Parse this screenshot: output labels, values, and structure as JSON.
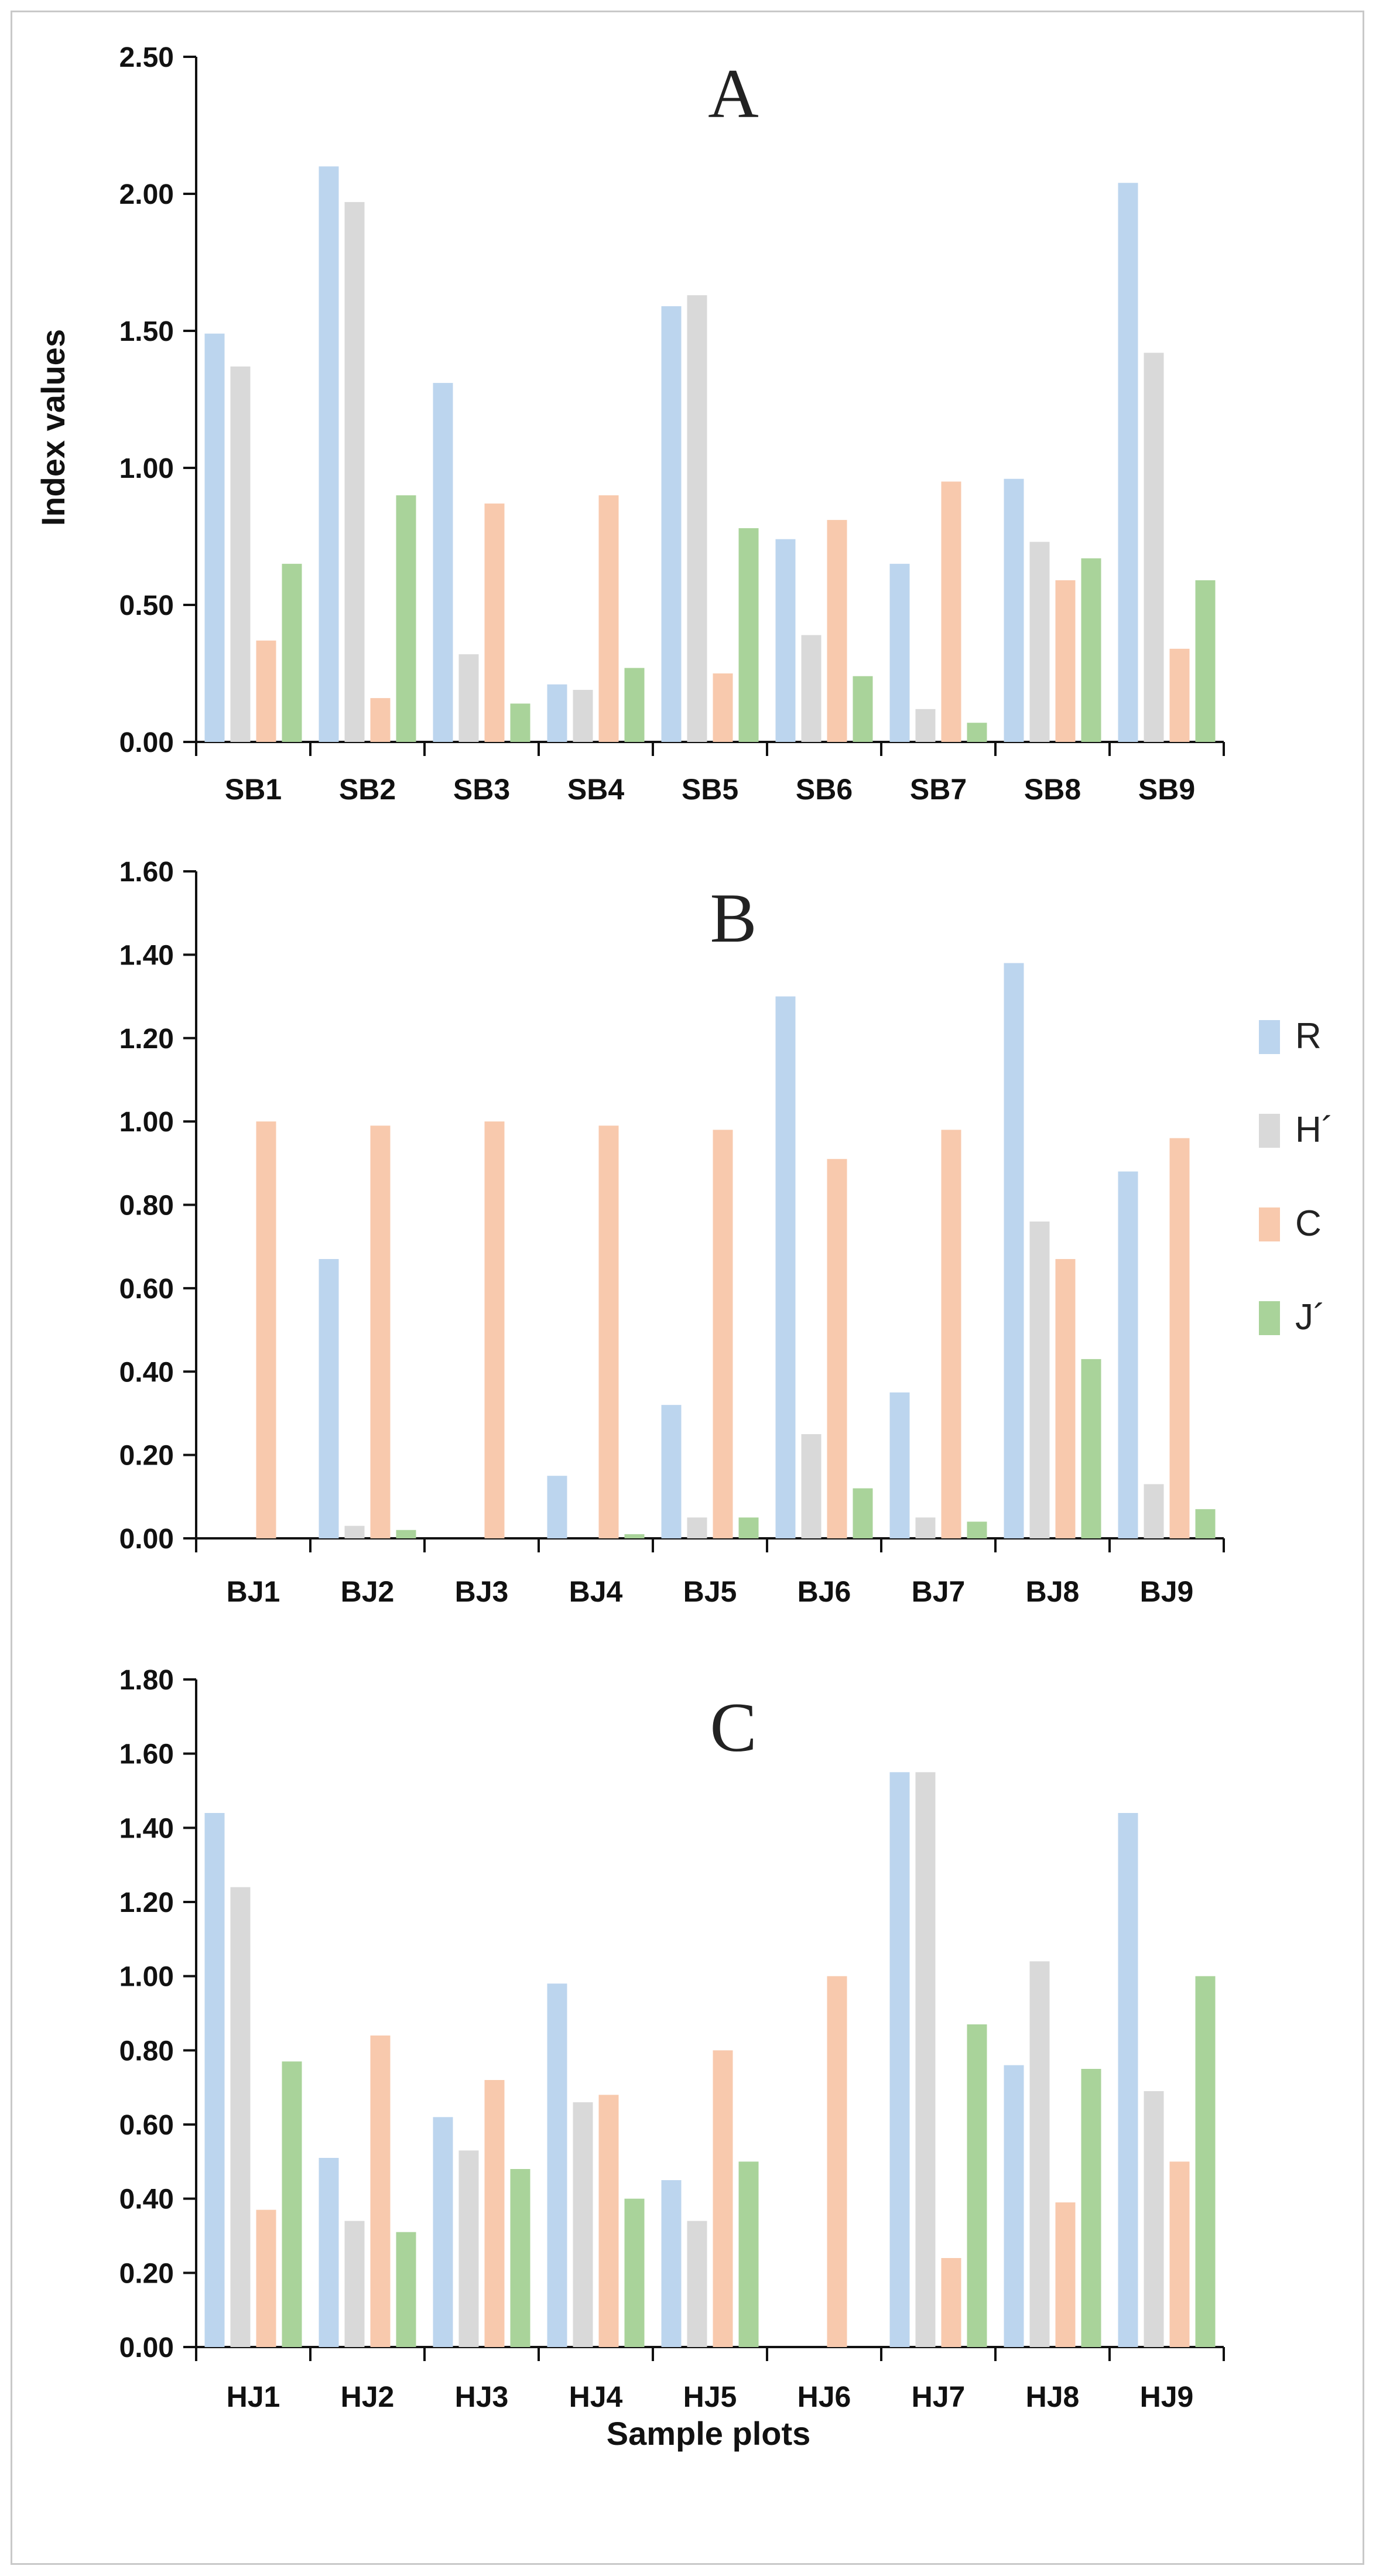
{
  "chart_data": {
    "type": "bar",
    "ylabel": "Index values",
    "xlabel": "Sample plots",
    "legend": {
      "placement": "right",
      "entries": [
        {
          "name": "R",
          "color": "#bcd5ee"
        },
        {
          "name": "H´",
          "color": "#d9d9d9"
        },
        {
          "name": "C",
          "color": "#f8c9ad"
        },
        {
          "name": "J´",
          "color": "#a9d39a"
        }
      ]
    },
    "panels": [
      {
        "title": "A",
        "ylim": [
          0,
          2.5
        ],
        "yticks": [
          0,
          0.5,
          1.0,
          1.5,
          2.0,
          2.5
        ],
        "categories": [
          "SB1",
          "SB2",
          "SB3",
          "SB4",
          "SB5",
          "SB6",
          "SB7",
          "SB8",
          "SB9"
        ],
        "series": [
          {
            "name": "R",
            "values": [
              1.49,
              2.1,
              1.31,
              0.21,
              1.59,
              0.74,
              0.65,
              0.96,
              2.04
            ]
          },
          {
            "name": "H´",
            "values": [
              1.37,
              1.97,
              0.32,
              0.19,
              1.63,
              0.39,
              0.12,
              0.73,
              1.42
            ]
          },
          {
            "name": "C",
            "values": [
              0.37,
              0.16,
              0.87,
              0.9,
              0.25,
              0.81,
              0.95,
              0.59,
              0.34
            ]
          },
          {
            "name": "J´",
            "values": [
              0.65,
              0.9,
              0.14,
              0.27,
              0.78,
              0.24,
              0.07,
              0.67,
              0.59
            ]
          }
        ]
      },
      {
        "title": "B",
        "ylim": [
          0,
          1.6
        ],
        "yticks": [
          0,
          0.2,
          0.4,
          0.6,
          0.8,
          1.0,
          1.2,
          1.4,
          1.6
        ],
        "categories": [
          "BJ1",
          "BJ2",
          "BJ3",
          "BJ4",
          "BJ5",
          "BJ6",
          "BJ7",
          "BJ8",
          "BJ9"
        ],
        "series": [
          {
            "name": "R",
            "values": [
              0.0,
              0.67,
              0.0,
              0.15,
              0.32,
              1.3,
              0.35,
              1.38,
              0.88
            ]
          },
          {
            "name": "H´",
            "values": [
              0.0,
              0.03,
              0.0,
              0.0,
              0.05,
              0.25,
              0.05,
              0.76,
              0.13
            ]
          },
          {
            "name": "C",
            "values": [
              1.0,
              0.99,
              1.0,
              0.99,
              0.98,
              0.91,
              0.98,
              0.67,
              0.96
            ]
          },
          {
            "name": "J´",
            "values": [
              0.0,
              0.02,
              0.0,
              0.01,
              0.05,
              0.12,
              0.04,
              0.43,
              0.07
            ]
          }
        ]
      },
      {
        "title": "C",
        "ylim": [
          0,
          1.8
        ],
        "yticks": [
          0,
          0.2,
          0.4,
          0.6,
          0.8,
          1.0,
          1.2,
          1.4,
          1.6,
          1.8
        ],
        "categories": [
          "HJ1",
          "HJ2",
          "HJ3",
          "HJ4",
          "HJ5",
          "HJ6",
          "HJ7",
          "HJ8",
          "HJ9"
        ],
        "series": [
          {
            "name": "R",
            "values": [
              1.44,
              0.51,
              0.62,
              0.98,
              0.45,
              0.0,
              1.55,
              0.76,
              1.44
            ]
          },
          {
            "name": "H´",
            "values": [
              1.24,
              0.34,
              0.53,
              0.66,
              0.34,
              0.0,
              1.55,
              1.04,
              0.69
            ]
          },
          {
            "name": "C",
            "values": [
              0.37,
              0.84,
              0.72,
              0.68,
              0.8,
              1.0,
              0.24,
              0.39,
              0.5
            ]
          },
          {
            "name": "J´",
            "values": [
              0.77,
              0.31,
              0.48,
              0.4,
              0.5,
              0.0,
              0.87,
              0.75,
              1.0
            ]
          }
        ]
      }
    ]
  }
}
